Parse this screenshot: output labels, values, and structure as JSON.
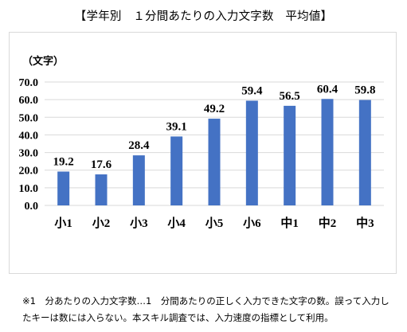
{
  "title": "【学年別　１分間あたりの入力文字数　平均値】",
  "footnote": {
    "line1": "※1　分あたりの入力文字数…1　分間あたりの正しく入力できた文字の数。誤って入力し",
    "line2": "たキーは数には入らない。本スキル調査では、入力速度の指標として利用。"
  },
  "chart_data": {
    "type": "bar",
    "unit_label": "（文字）",
    "categories": [
      "小1",
      "小2",
      "小3",
      "小4",
      "小5",
      "小6",
      "中1",
      "中2",
      "中3"
    ],
    "values": [
      19.2,
      17.6,
      28.4,
      39.1,
      49.2,
      59.4,
      56.5,
      60.4,
      59.8
    ],
    "value_labels": [
      "19.2",
      "17.6",
      "28.4",
      "39.1",
      "49.2",
      "59.4",
      "56.5",
      "60.4",
      "59.8"
    ],
    "y_ticks": [
      "0.0",
      "10.0",
      "20.0",
      "30.0",
      "40.0",
      "50.0",
      "60.0",
      "70.0"
    ],
    "ylim": [
      0,
      70
    ],
    "grid": true,
    "bar_color": "#4472c4",
    "grid_color": "#d9d9d9"
  }
}
